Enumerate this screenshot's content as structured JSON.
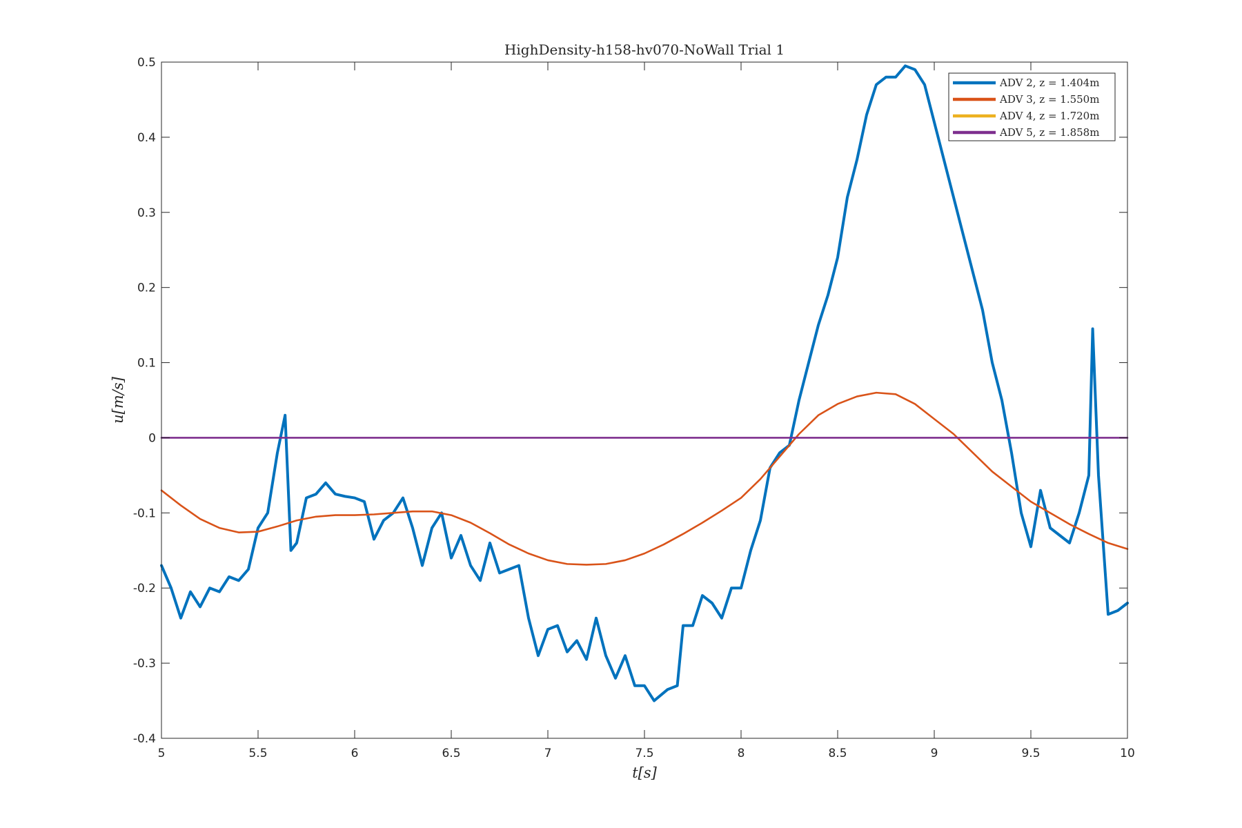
{
  "chart_data": {
    "type": "line",
    "title": "HighDensity-h158-hv070-NoWall Trial 1",
    "xlabel": "t[s]",
    "ylabel": "u[m/s]",
    "xlim": [
      5,
      10
    ],
    "ylim": [
      -0.4,
      0.5
    ],
    "xticks": [
      "5",
      "5.5",
      "6",
      "6.5",
      "7",
      "7.5",
      "8",
      "8.5",
      "9",
      "9.5",
      "10"
    ],
    "yticks": [
      "-0.4",
      "-0.3",
      "-0.2",
      "-0.1",
      "0",
      "0.1",
      "0.2",
      "0.3",
      "0.4",
      "0.5"
    ],
    "grid": false,
    "legend_position": "top-right",
    "series": [
      {
        "name": "ADV 2, z = 1.404m",
        "color": "#0072BD",
        "line_width": "thick",
        "x": [
          5.0,
          5.05,
          5.1,
          5.15,
          5.2,
          5.25,
          5.3,
          5.35,
          5.4,
          5.45,
          5.5,
          5.55,
          5.6,
          5.64,
          5.67,
          5.7,
          5.75,
          5.8,
          5.85,
          5.9,
          5.95,
          6.0,
          6.05,
          6.1,
          6.15,
          6.2,
          6.25,
          6.3,
          6.35,
          6.4,
          6.45,
          6.5,
          6.55,
          6.6,
          6.65,
          6.7,
          6.75,
          6.8,
          6.85,
          6.9,
          6.95,
          7.0,
          7.05,
          7.1,
          7.15,
          7.2,
          7.25,
          7.3,
          7.35,
          7.4,
          7.45,
          7.5,
          7.55,
          7.62,
          7.67,
          7.7,
          7.75,
          7.8,
          7.85,
          7.9,
          7.95,
          8.0,
          8.05,
          8.1,
          8.15,
          8.2,
          8.25,
          8.3,
          8.35,
          8.4,
          8.45,
          8.5,
          8.55,
          8.6,
          8.65,
          8.7,
          8.75,
          8.8,
          8.85,
          8.9,
          8.95,
          9.0,
          9.05,
          9.1,
          9.15,
          9.2,
          9.25,
          9.3,
          9.35,
          9.4,
          9.45,
          9.5,
          9.55,
          9.6,
          9.65,
          9.7,
          9.75,
          9.8,
          9.82,
          9.85,
          9.9,
          9.95,
          10.0
        ],
        "y": [
          -0.17,
          -0.2,
          -0.24,
          -0.205,
          -0.225,
          -0.2,
          -0.205,
          -0.185,
          -0.19,
          -0.175,
          -0.12,
          -0.1,
          -0.02,
          0.03,
          -0.15,
          -0.14,
          -0.08,
          -0.075,
          -0.06,
          -0.075,
          -0.078,
          -0.08,
          -0.085,
          -0.135,
          -0.11,
          -0.1,
          -0.08,
          -0.12,
          -0.17,
          -0.12,
          -0.1,
          -0.16,
          -0.13,
          -0.17,
          -0.19,
          -0.14,
          -0.18,
          -0.175,
          -0.17,
          -0.24,
          -0.29,
          -0.255,
          -0.25,
          -0.285,
          -0.27,
          -0.295,
          -0.24,
          -0.29,
          -0.32,
          -0.29,
          -0.33,
          -0.33,
          -0.35,
          -0.335,
          -0.33,
          -0.25,
          -0.25,
          -0.21,
          -0.22,
          -0.24,
          -0.2,
          -0.2,
          -0.15,
          -0.11,
          -0.04,
          -0.02,
          -0.01,
          0.05,
          0.1,
          0.15,
          0.19,
          0.24,
          0.32,
          0.37,
          0.43,
          0.47,
          0.48,
          0.48,
          0.495,
          0.49,
          0.47,
          0.42,
          0.37,
          0.32,
          0.27,
          0.22,
          0.17,
          0.1,
          0.05,
          -0.02,
          -0.1,
          -0.145,
          -0.07,
          -0.12,
          -0.13,
          -0.14,
          -0.1,
          -0.05,
          0.145,
          -0.05,
          -0.235,
          -0.23,
          -0.22
        ]
      },
      {
        "name": "ADV 3, z = 1.550m",
        "color": "#D95319",
        "line_width": "medium",
        "x": [
          5.0,
          5.1,
          5.2,
          5.3,
          5.4,
          5.5,
          5.6,
          5.7,
          5.8,
          5.9,
          6.0,
          6.1,
          6.2,
          6.3,
          6.4,
          6.5,
          6.6,
          6.7,
          6.8,
          6.9,
          7.0,
          7.1,
          7.2,
          7.3,
          7.4,
          7.5,
          7.6,
          7.7,
          7.8,
          7.9,
          8.0,
          8.1,
          8.2,
          8.3,
          8.4,
          8.5,
          8.6,
          8.7,
          8.8,
          8.9,
          9.0,
          9.1,
          9.2,
          9.3,
          9.4,
          9.5,
          9.6,
          9.7,
          9.8,
          9.9,
          10.0
        ],
        "y": [
          -0.07,
          -0.09,
          -0.108,
          -0.12,
          -0.126,
          -0.125,
          -0.118,
          -0.11,
          -0.105,
          -0.103,
          -0.103,
          -0.102,
          -0.1,
          -0.098,
          -0.098,
          -0.103,
          -0.113,
          -0.127,
          -0.142,
          -0.154,
          -0.163,
          -0.168,
          -0.169,
          -0.168,
          -0.163,
          -0.154,
          -0.142,
          -0.128,
          -0.113,
          -0.097,
          -0.08,
          -0.055,
          -0.025,
          0.005,
          0.03,
          0.045,
          0.055,
          0.06,
          0.058,
          0.045,
          0.025,
          0.005,
          -0.02,
          -0.045,
          -0.065,
          -0.085,
          -0.1,
          -0.115,
          -0.128,
          -0.14,
          -0.148
        ]
      },
      {
        "name": "ADV 4, z = 1.720m",
        "color": "#EDB120",
        "line_width": "thin",
        "x": [
          5.0,
          10.0
        ],
        "y": [
          0.0,
          0.0
        ]
      },
      {
        "name": "ADV 5, z = 1.858m",
        "color": "#7E2F8E",
        "line_width": "medium",
        "x": [
          5.0,
          10.0
        ],
        "y": [
          0.0,
          0.0
        ]
      }
    ]
  }
}
